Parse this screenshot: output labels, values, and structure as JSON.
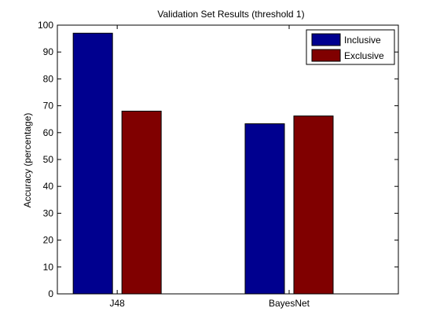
{
  "chart_data": {
    "type": "bar",
    "title": "Validation Set Results (threshold 1)",
    "xlabel": "",
    "ylabel": "Accuracy (percentage)",
    "categories": [
      "J48",
      "BayesNet"
    ],
    "series": [
      {
        "name": "Inclusive",
        "color": "#00008f",
        "values": [
          97,
          63.3
        ]
      },
      {
        "name": "Exclusive",
        "color": "#800000",
        "values": [
          68,
          66.2
        ]
      }
    ],
    "ylim": [
      0,
      100
    ],
    "yticks": [
      0,
      10,
      20,
      30,
      40,
      50,
      60,
      70,
      80,
      90,
      100
    ],
    "grid": false,
    "legend_position": "top-right"
  }
}
